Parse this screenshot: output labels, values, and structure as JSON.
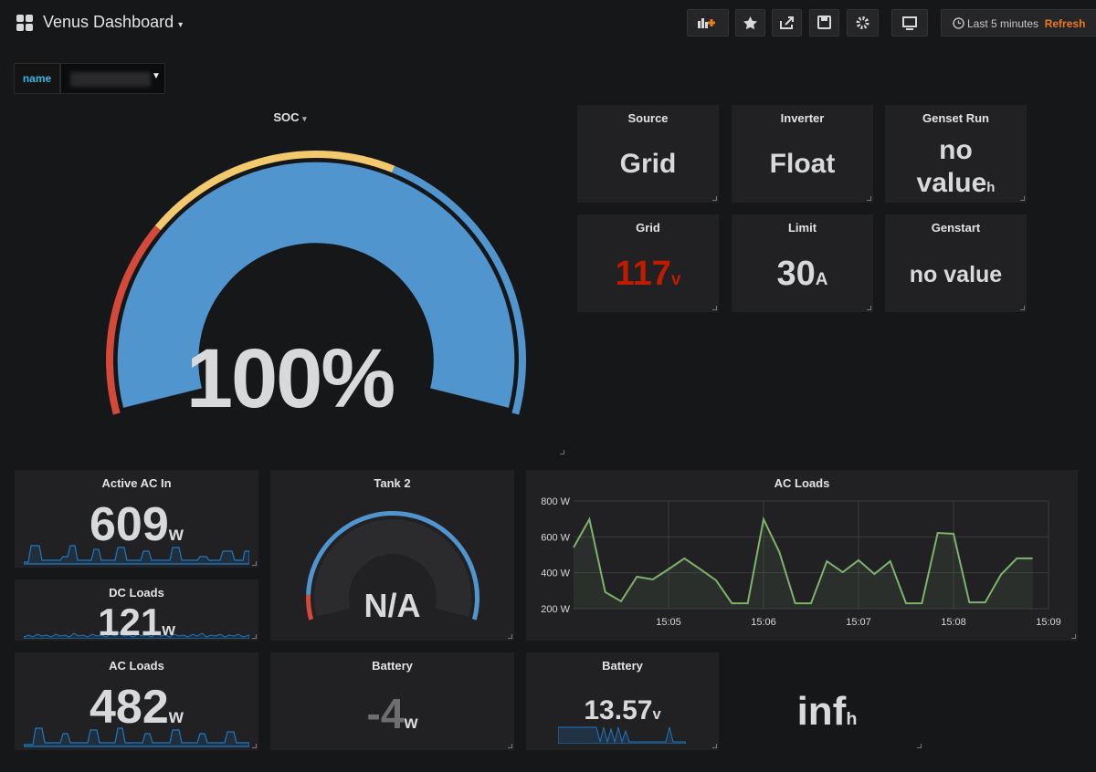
{
  "header": {
    "title": "Venus Dashboard",
    "time_range": "Last 5 minutes",
    "refresh": "Refresh"
  },
  "variable": {
    "label": "name"
  },
  "soc": {
    "title": "SOC",
    "value": 100,
    "value_label": "100%"
  },
  "source": {
    "title": "Source",
    "value": "Grid"
  },
  "inverter": {
    "title": "Inverter",
    "value": "Float"
  },
  "genset_run": {
    "title": "Genset Run",
    "value": "no value",
    "unit": "h"
  },
  "grid": {
    "title": "Grid",
    "value": 117,
    "unit": "v"
  },
  "limit": {
    "title": "Limit",
    "value": 30,
    "unit": "A"
  },
  "genstart": {
    "title": "Genstart",
    "value": "no value"
  },
  "active_ac_in": {
    "title": "Active AC In",
    "value": 609,
    "unit": "w"
  },
  "dc_loads": {
    "title": "DC Loads",
    "value": 121,
    "unit": "w"
  },
  "tank2": {
    "title": "Tank 2",
    "value": "N/A"
  },
  "ac_loads_stat": {
    "title": "AC Loads",
    "value": 482,
    "unit": "w"
  },
  "battery_power": {
    "title": "Battery",
    "value": -4,
    "unit": "w"
  },
  "battery_voltage": {
    "title": "Battery",
    "value": 13.57,
    "unit": "v"
  },
  "runtime": {
    "value": "inf",
    "unit": "h"
  },
  "chart_data": {
    "type": "line",
    "title": "AC Loads",
    "x": [
      54240,
      54250,
      54260,
      54270,
      54280,
      54290,
      54300,
      54310,
      54320,
      54330,
      54340,
      54350,
      54360,
      54370,
      54380,
      54390,
      54400,
      54410,
      54420,
      54430,
      54440,
      54450,
      54460,
      54470,
      54480,
      54490,
      54500,
      54510,
      54520,
      54530
    ],
    "series": [
      {
        "color": "#7eb26d",
        "values": [
          541,
          698,
          292,
          241,
          378,
          363,
          420,
          480,
          420,
          358,
          230,
          230,
          698,
          515,
          230,
          230,
          464,
          403,
          470,
          393,
          464,
          230,
          230,
          622,
          617,
          235,
          235,
          390,
          480,
          480
        ]
      }
    ],
    "xlim": [
      54240,
      54540
    ],
    "xticks": [
      {
        "value": 54300,
        "label": "15:05"
      },
      {
        "value": 54360,
        "label": "15:06"
      },
      {
        "value": 54420,
        "label": "15:07"
      },
      {
        "value": 54480,
        "label": "15:08"
      },
      {
        "value": 54540,
        "label": "15:09"
      }
    ],
    "ylim": [
      200,
      800
    ],
    "yticks": [
      {
        "value": 200,
        "label": "200 W"
      },
      {
        "value": 400,
        "label": "400 W"
      },
      {
        "value": 600,
        "label": "600 W"
      },
      {
        "value": 800,
        "label": "800 W"
      }
    ],
    "grid": true
  }
}
